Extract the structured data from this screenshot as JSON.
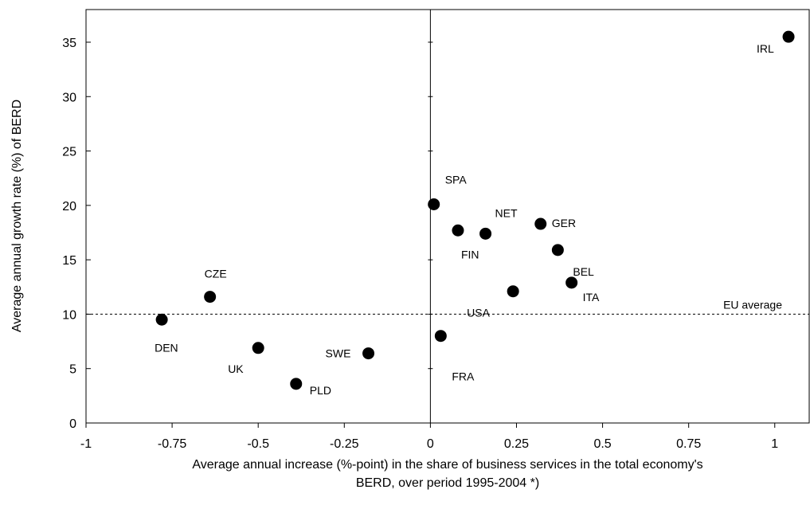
{
  "chart_data": {
    "type": "scatter",
    "title": "",
    "xlabel_lines": [
      "Average annual increase (%-point) in the share of business services in the total economy's",
      "BERD, over period 1995-2004 *)"
    ],
    "ylabel": "Average annual growth rate (%) of BERD",
    "xlim": [
      -1,
      1.1
    ],
    "ylim": [
      0,
      38
    ],
    "x_ticks": [
      -1,
      -0.75,
      -0.5,
      -0.25,
      0,
      0.25,
      0.5,
      0.75,
      1
    ],
    "x_tick_labels": [
      "-1",
      "-0.75",
      "-0.5",
      "-0.25",
      "0",
      "0.25",
      "0.5",
      "0.75",
      "1"
    ],
    "y_ticks": [
      0,
      5,
      10,
      15,
      20,
      25,
      30,
      35
    ],
    "y_tick_labels": [
      "0",
      "5",
      "10",
      "15",
      "20",
      "25",
      "30",
      "35"
    ],
    "grid": false,
    "reference_line": {
      "y": 10,
      "label": "EU average",
      "style": "dashed"
    },
    "points": [
      {
        "label": "IRL",
        "x": 1.04,
        "y": 35.5
      },
      {
        "label": "SPA",
        "x": 0.01,
        "y": 20.1
      },
      {
        "label": "NET",
        "x": 0.16,
        "y": 17.4
      },
      {
        "label": "GER",
        "x": 0.32,
        "y": 18.3
      },
      {
        "label": "FIN",
        "x": 0.08,
        "y": 17.7
      },
      {
        "label": "BEL",
        "x": 0.37,
        "y": 15.9
      },
      {
        "label": "ITA",
        "x": 0.41,
        "y": 12.9
      },
      {
        "label": "USA",
        "x": 0.24,
        "y": 12.1
      },
      {
        "label": "FRA",
        "x": 0.03,
        "y": 8.0
      },
      {
        "label": "CZE",
        "x": -0.64,
        "y": 11.6
      },
      {
        "label": "DEN",
        "x": -0.78,
        "y": 9.5
      },
      {
        "label": "UK",
        "x": -0.5,
        "y": 6.9
      },
      {
        "label": "SWE",
        "x": -0.18,
        "y": 6.4
      },
      {
        "label": "PLD",
        "x": -0.39,
        "y": 3.6
      }
    ]
  }
}
